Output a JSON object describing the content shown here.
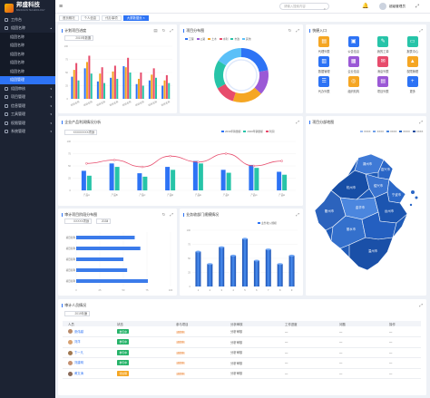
{
  "brand": {
    "name": "邦盛科技",
    "sub": "BANGSUN TECHNOLOGY"
  },
  "sidebar": {
    "items": [
      {
        "label": "工作台",
        "type": "top"
      },
      {
        "label": "组团名称",
        "type": "group",
        "open": true
      },
      {
        "label": "组团名称",
        "type": "sub"
      },
      {
        "label": "组团名称",
        "type": "sub"
      },
      {
        "label": "组团名称",
        "type": "sub"
      },
      {
        "label": "组团名称",
        "type": "sub"
      },
      {
        "label": "组团名称",
        "type": "sub"
      },
      {
        "label": "组团管理",
        "type": "sub",
        "active": true
      },
      {
        "label": "组团审核",
        "type": "group"
      },
      {
        "label": "项目管理",
        "type": "group"
      },
      {
        "label": "信息管理",
        "type": "group"
      },
      {
        "label": "工具管理",
        "type": "group"
      },
      {
        "label": "权限管理",
        "type": "group"
      },
      {
        "label": "系统管理",
        "type": "group"
      }
    ]
  },
  "topbar": {
    "search_placeholder": "请输入搜索内容",
    "user": "超级管理员"
  },
  "tabs": [
    {
      "label": "首页概况"
    },
    {
      "label": "个人信息"
    },
    {
      "label": "代办事项"
    },
    {
      "label": "大屏数据页",
      "active": true
    }
  ],
  "cards": {
    "plan": {
      "title": "计划项目进度",
      "select": "2019年数据"
    },
    "donut": {
      "title": "项目分布图"
    },
    "quick": {
      "title": "快捷入口",
      "items": [
        {
          "label": "代理列表",
          "icon": "briefcase-icon",
          "color": "#f5a623",
          "glyph": "▤"
        },
        {
          "label": "公告信息",
          "icon": "bulletin-icon",
          "color": "#2d73f5",
          "glyph": "▣"
        },
        {
          "label": "我的工单",
          "icon": "ticket-icon",
          "color": "#27c4a8",
          "glyph": "✎"
        },
        {
          "label": "报表中心",
          "icon": "monitor-icon",
          "color": "#27c4a8",
          "glyph": "▭"
        },
        {
          "label": "数据管理",
          "icon": "document-icon",
          "color": "#2d73f5",
          "glyph": "▥"
        },
        {
          "label": "企业信息",
          "icon": "grid-icon",
          "color": "#9b59d6",
          "glyph": "▦"
        },
        {
          "label": "消息列表",
          "icon": "message-icon",
          "color": "#e74c6c",
          "glyph": "✉"
        },
        {
          "label": "权限管理",
          "icon": "lock-icon",
          "color": "#f5a623",
          "glyph": "▲"
        },
        {
          "label": "代办列表",
          "icon": "list-icon",
          "color": "#2d73f5",
          "glyph": "☰"
        },
        {
          "label": "组织机构",
          "icon": "org-icon",
          "color": "#f5a623",
          "glyph": "◎"
        },
        {
          "label": "项目列表",
          "icon": "case-icon",
          "color": "#9b59d6",
          "glyph": "▤"
        },
        {
          "label": "更多",
          "icon": "plus-icon",
          "color": "#2d73f5",
          "glyph": "+"
        }
      ]
    },
    "industry": {
      "title": "企业产品利润情况分析",
      "select": "XXXXXXXX项目"
    },
    "map": {
      "title": "项目分部地图"
    },
    "plan_dist": {
      "title": "审计项目阶段分布图",
      "select": "XXXXX项目",
      "year": "2022"
    },
    "dept": {
      "title": "业务收部门规模情况"
    },
    "audit": {
      "title": "审计人员情况",
      "select": "2019年度"
    }
  },
  "chart_data": [
    {
      "type": "bar",
      "categories": [
        "项目名称",
        "项目名称",
        "项目名称",
        "项目名称",
        "项目名称",
        "项目名称",
        "项目名称",
        "项目名称"
      ],
      "series": [
        {
          "color": "#2d73f5",
          "values": [
            42,
            58,
            33,
            40,
            62,
            28,
            35,
            25
          ]
        },
        {
          "color": "#f5a623",
          "values": [
            55,
            70,
            48,
            52,
            60,
            38,
            46,
            35
          ]
        },
        {
          "color": "#e74c6c",
          "values": [
            68,
            82,
            60,
            63,
            78,
            50,
            58,
            45
          ]
        },
        {
          "color": "#27c4a8",
          "values": [
            35,
            48,
            30,
            38,
            50,
            25,
            40,
            30
          ]
        }
      ],
      "ylim": [
        0,
        100
      ]
    },
    {
      "type": "pie",
      "series": [
        {
          "name": "工程",
          "value": 22,
          "color": "#2d73f5"
        },
        {
          "name": "公路",
          "value": 15,
          "color": "#9b59d6"
        },
        {
          "name": "土木",
          "value": 18,
          "color": "#f5a623"
        },
        {
          "name": "水利",
          "value": 12,
          "color": "#e74c6c"
        },
        {
          "name": "市政",
          "value": 17,
          "color": "#27c4a8"
        },
        {
          "name": "其他",
          "value": 16,
          "color": "#5bc0f8"
        }
      ]
    },
    {
      "type": "bar",
      "categories": [
        "产品A",
        "产品B",
        "产品C",
        "产品D",
        "产品E",
        "产品F",
        "产品G",
        "产品H"
      ],
      "series": [
        {
          "name": "2019年销量额",
          "color": "#2d73f5",
          "values": [
            40,
            55,
            35,
            48,
            60,
            42,
            52,
            38
          ]
        },
        {
          "name": "2020年销量额",
          "color": "#27c4a8",
          "values": [
            30,
            48,
            28,
            42,
            55,
            36,
            46,
            32
          ]
        },
        {
          "name": "利润",
          "color": "#e74c6c",
          "values": [
            55,
            62,
            48,
            70,
            58,
            75,
            50,
            60
          ]
        }
      ],
      "ylim": [
        0,
        100
      ]
    },
    {
      "type": "bar",
      "orientation": "horizontal",
      "categories": [
        "项目名称",
        "项目名称",
        "项目名称",
        "项目名称",
        "项目名称"
      ],
      "values": [
        62,
        68,
        50,
        54,
        76
      ],
      "ylim": [
        0,
        100
      ]
    },
    {
      "type": "bar",
      "categories": [
        "1",
        "2",
        "3",
        "4",
        "5",
        "6",
        "7",
        "8",
        "9"
      ],
      "series": [
        {
          "name": "业务收入规模",
          "values": [
            62,
            40,
            70,
            55,
            85,
            46,
            66,
            40,
            55
          ]
        }
      ],
      "ylim": [
        0,
        100
      ]
    }
  ],
  "map_legend": [
    "XXXX",
    "XXXX",
    "XXXX",
    "XXXX",
    "XXXX"
  ],
  "map_cities": [
    "湖州市",
    "嘉兴市",
    "杭州市",
    "绍兴市",
    "宁波市",
    "舟山市",
    "金华市",
    "衢州市",
    "台州市",
    "丽水市",
    "温州市"
  ],
  "audit_table": {
    "headers": [
      "人员",
      "状态",
      "参与项目",
      "分析审核",
      "工作进度",
      "问题",
      "操作"
    ],
    "rows": [
      {
        "name": "张伟越",
        "status": "参与中",
        "status_color": "#27b36a",
        "project": "进行中",
        "analysis": "分析审核",
        "progress": "—",
        "issue": "—",
        "action": "—",
        "avatar": "#b88a6a"
      },
      {
        "name": "刘洋",
        "status": "参与中",
        "status_color": "#27b36a",
        "project": "进行中",
        "analysis": "分析审核",
        "progress": "—",
        "issue": "—",
        "action": "—",
        "avatar": "#d6a070"
      },
      {
        "name": "卞一凡",
        "status": "参与中",
        "status_color": "#27b36a",
        "project": "进行中",
        "analysis": "分析审核",
        "progress": "—",
        "issue": "—",
        "action": "—",
        "avatar": "#a07850"
      },
      {
        "name": "刘建明",
        "status": "参与中",
        "status_color": "#27b36a",
        "project": "进行中",
        "analysis": "分析审核",
        "progress": "—",
        "issue": "—",
        "action": "—",
        "avatar": "#c49070"
      },
      {
        "name": "黄文涛",
        "status": "待处理",
        "status_color": "#f5a623",
        "project": "进行中",
        "analysis": "分析审核",
        "progress": "—",
        "issue": "—",
        "action": "—",
        "avatar": "#8a6a58"
      }
    ]
  }
}
